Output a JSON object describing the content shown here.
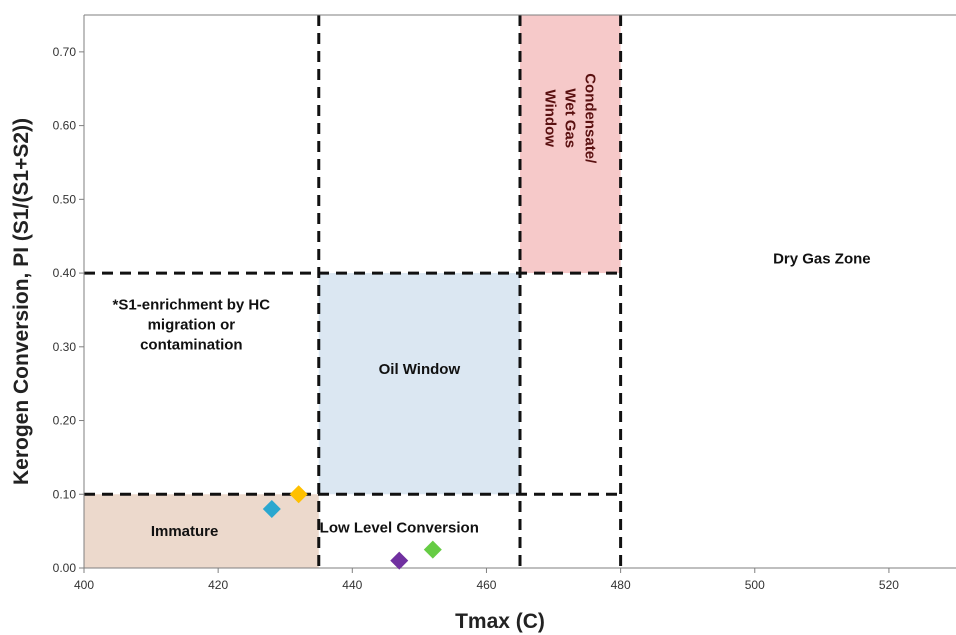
{
  "chart_data": {
    "type": "scatter",
    "xlabel": "Tmax (C)",
    "ylabel": "Kerogen Conversion, PI (S1/(S1+S2))",
    "xlim": [
      400,
      530
    ],
    "ylim": [
      0,
      0.75
    ],
    "x_ticks": [
      "400",
      "420",
      "440",
      "460",
      "480",
      "500",
      "520"
    ],
    "y_ticks": [
      "0.00",
      "0.10",
      "0.20",
      "0.30",
      "0.40",
      "0.50",
      "0.60",
      "0.70"
    ],
    "grid": false,
    "legend": "none",
    "zones": [
      {
        "name": "immature",
        "x": [
          400,
          435
        ],
        "y": [
          0,
          0.1
        ],
        "color": "#ecd9cc"
      },
      {
        "name": "oil-window",
        "x": [
          435,
          465
        ],
        "y": [
          0.1,
          0.4
        ],
        "color": "#dbe7f2"
      },
      {
        "name": "condensate",
        "x": [
          465,
          480
        ],
        "y": [
          0.4,
          0.75
        ],
        "color": "#f6c9c9"
      }
    ],
    "boundaries": {
      "vertical": [
        435,
        465,
        480
      ],
      "horizontal": [
        0.1,
        0.4
      ]
    },
    "annotations": [
      {
        "id": "immature",
        "lines": [
          "Immature"
        ],
        "x": 415,
        "y": 0.05
      },
      {
        "id": "low-level-conversion",
        "lines": [
          "Low Level Conversion"
        ],
        "x": 447,
        "y": 0.055
      },
      {
        "id": "oil-window",
        "lines": [
          "Oil Window"
        ],
        "x": 450,
        "y": 0.27
      },
      {
        "id": "dry-gas-zone",
        "lines": [
          "Dry Gas Zone"
        ],
        "x": 510,
        "y": 0.42
      },
      {
        "id": "s1-enrichment",
        "lines": [
          "*S1-enrichment by HC",
          "migration or",
          "contamination"
        ],
        "x": 416,
        "y": 0.33
      },
      {
        "id": "condensate",
        "lines": [
          "Condensate/",
          "Wet Gas",
          "Window"
        ],
        "x": 472.5,
        "y": 0.61,
        "rotate": 90
      }
    ],
    "points": [
      {
        "x": 428,
        "y": 0.08,
        "color": "#2aa7cf"
      },
      {
        "x": 432,
        "y": 0.1,
        "color": "#ffc000"
      },
      {
        "x": 447,
        "y": 0.01,
        "color": "#7030a0"
      },
      {
        "x": 452,
        "y": 0.025,
        "color": "#66cc44"
      }
    ]
  }
}
